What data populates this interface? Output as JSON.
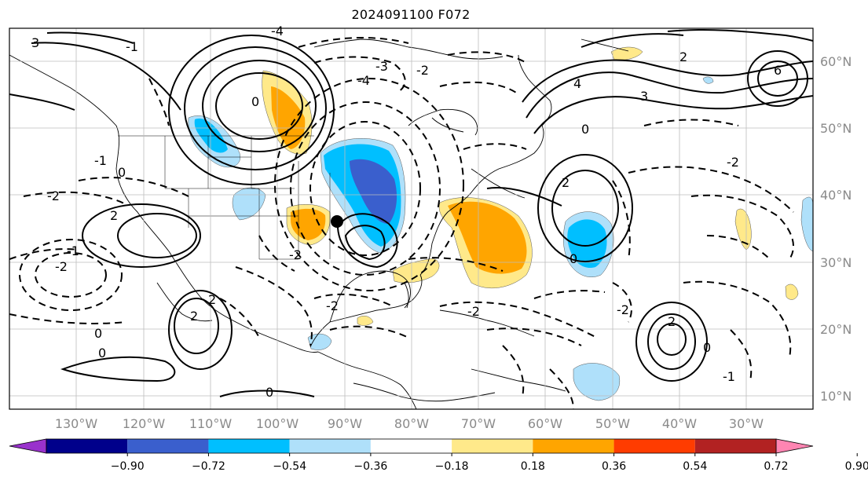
{
  "title": "2024091100 F072",
  "map": {
    "lon_labels": [
      "130°W",
      "120°W",
      "110°W",
      "100°W",
      "90°W",
      "80°W",
      "70°W",
      "60°W",
      "50°W",
      "40°W",
      "30°W"
    ],
    "lat_labels": [
      "60°N",
      "50°N",
      "40°N",
      "30°N",
      "20°N",
      "10°N"
    ],
    "grid": true,
    "contour_labels": [
      "3",
      "-4",
      "-1",
      "0",
      "-3",
      "-2",
      "-4",
      "4",
      "6",
      "3",
      "2",
      "-1",
      "2",
      "-2",
      "0",
      "-1",
      "-2",
      "-2",
      "2",
      "0",
      "0",
      "-2",
      "2",
      "0",
      "-2",
      "-2",
      "0",
      "-1",
      "0",
      "2",
      "-2",
      "0",
      "2"
    ],
    "marker": "black-dot"
  },
  "colorbar": {
    "tick_labels": [
      "−0.90",
      "−0.72",
      "−0.54",
      "−0.36",
      "−0.18",
      "0.18",
      "0.36",
      "0.54",
      "0.72",
      "0.90"
    ],
    "colors": [
      "#9932cc",
      "#00008b",
      "#3a5fcd",
      "#00bfff",
      "#afe0fa",
      "#ffffff",
      "#ffe98a",
      "#ffa500",
      "#ff3c00",
      "#b22222",
      "#ff85b2"
    ],
    "extend": "both"
  }
}
